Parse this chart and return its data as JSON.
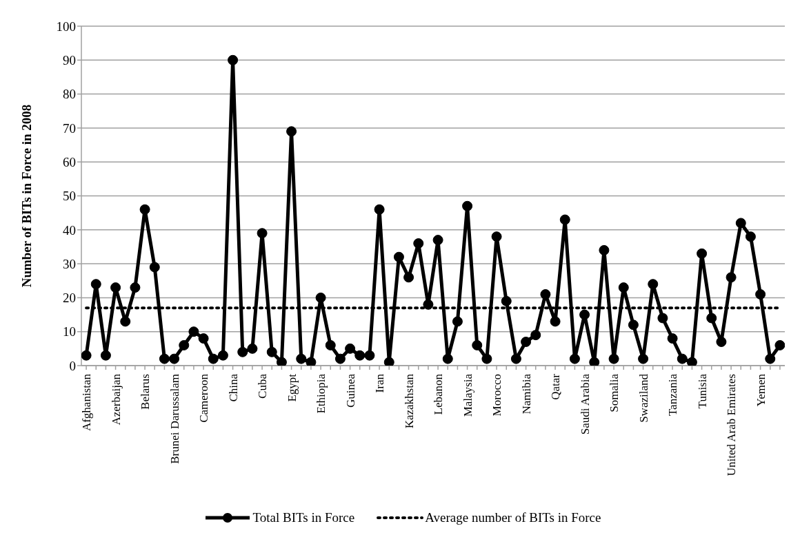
{
  "chart_data": {
    "type": "line",
    "ylabel": "Number of BITs in Force in 2008",
    "categories": [
      "Afghanistan",
      null,
      null,
      "Azerbaijan",
      null,
      null,
      "Belarus",
      null,
      null,
      "Brunei Darussalam",
      null,
      null,
      "Cameroon",
      null,
      null,
      "China",
      null,
      null,
      "Cuba",
      null,
      null,
      "Egypt",
      null,
      null,
      "Ethiopia",
      null,
      null,
      "Guinea",
      null,
      null,
      "Iran",
      null,
      null,
      "Kazakhstan",
      null,
      null,
      "Lebanon",
      null,
      null,
      "Malaysia",
      null,
      null,
      "Morocco",
      null,
      null,
      "Namibia",
      null,
      null,
      "Qatar",
      null,
      null,
      "Saudi Arabia",
      null,
      null,
      "Somalia",
      null,
      null,
      "Swaziland",
      null,
      null,
      "Tanzania",
      null,
      null,
      "Tunisia",
      null,
      null,
      "United Arab Emirates",
      null,
      null,
      "Yemen",
      null,
      null
    ],
    "series": [
      {
        "name": "Total BITs in Force",
        "color": "#000000",
        "marker": "circle",
        "line_style": "solid",
        "values": [
          3,
          24,
          3,
          23,
          13,
          23,
          46,
          29,
          2,
          2,
          6,
          10,
          8,
          2,
          3,
          90,
          4,
          5,
          39,
          4,
          1,
          69,
          2,
          1,
          20,
          6,
          2,
          5,
          3,
          3,
          46,
          1,
          32,
          26,
          36,
          18,
          37,
          2,
          13,
          47,
          6,
          2,
          38,
          19,
          2,
          7,
          9,
          21,
          13,
          43,
          2,
          15,
          1,
          34,
          2,
          23,
          12,
          2,
          24,
          14,
          8,
          2,
          1,
          33,
          14,
          7,
          26,
          42,
          38,
          21,
          2,
          6
        ]
      },
      {
        "name": "Average number of BITs in Force",
        "color": "#000000",
        "marker": "none",
        "line_style": "dotted",
        "values": [
          17,
          17,
          17,
          17,
          17,
          17,
          17,
          17,
          17,
          17,
          17,
          17,
          17,
          17,
          17,
          17,
          17,
          17,
          17,
          17,
          17,
          17,
          17,
          17,
          17,
          17,
          17,
          17,
          17,
          17,
          17,
          17,
          17,
          17,
          17,
          17,
          17,
          17,
          17,
          17,
          17,
          17,
          17,
          17,
          17,
          17,
          17,
          17,
          17,
          17,
          17,
          17,
          17,
          17,
          17,
          17,
          17,
          17,
          17,
          17,
          17,
          17,
          17,
          17,
          17,
          17,
          17,
          17,
          17,
          17,
          17,
          17
        ]
      }
    ],
    "ylim": [
      0,
      100
    ],
    "yticks": [
      0,
      10,
      20,
      30,
      40,
      50,
      60,
      70,
      80,
      90,
      100
    ],
    "grid": "y",
    "legend": "bottom"
  }
}
